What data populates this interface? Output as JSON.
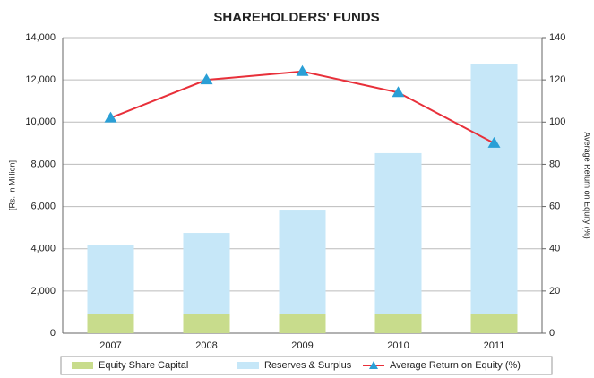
{
  "chart_data": {
    "type": "bar",
    "title": "SHAREHOLDERS' FUNDS",
    "y_label": "[Rs. in Million]",
    "y2_label": "Average Return on Equity (%)",
    "categories": [
      "2007",
      "2008",
      "2009",
      "2010",
      "2011"
    ],
    "series": [
      {
        "name": "Equity Share Capital",
        "color": "#c8dc8c",
        "values": [
          930,
          930,
          930,
          930,
          930
        ]
      },
      {
        "name": "Reserves & Surplus",
        "color": "#c6e7f8",
        "values": [
          3270,
          3820,
          4880,
          7600,
          11800
        ]
      },
      {
        "name": "Average Return on Equity (%)",
        "color": "#e8303a",
        "marker_color": "#2a9fd6",
        "type": "line",
        "axis": "y2",
        "values": [
          102,
          120,
          124,
          114,
          90
        ]
      }
    ],
    "stacked": true,
    "ylim": [
      0,
      14000
    ],
    "yticks": [
      0,
      {
        "value": 2000,
        "label": "2,000"
      },
      {
        "value": 4000,
        "label": "4,000"
      },
      {
        "value": 6000,
        "label": "6,000"
      },
      {
        "value": 8000,
        "label": "8,000"
      },
      {
        "value": 10000,
        "label": "10,000"
      },
      {
        "value": 12000,
        "label": "12,000"
      },
      {
        "value": 14000,
        "label": "14,000"
      }
    ],
    "y2lim": [
      0,
      140
    ],
    "y2ticks": [
      0,
      20,
      40,
      60,
      80,
      100,
      120,
      140
    ],
    "grid": true,
    "legend": "bottom"
  }
}
